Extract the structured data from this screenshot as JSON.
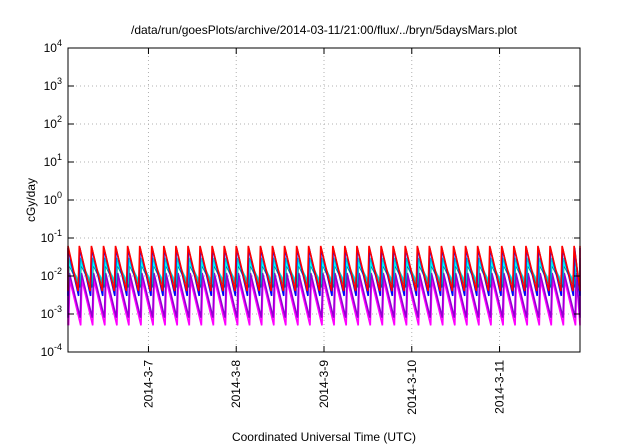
{
  "chart_data": {
    "type": "line",
    "title": "/data/run/goesPlots/archive/2014-03-11/21:00/flux/../bryn/5daysMars.plot",
    "xlabel": "Coordinated Universal Time (UTC)",
    "ylabel": "cGy/day",
    "yscale": "log",
    "ylim": [
      0.0001,
      10000
    ],
    "xlim": [
      "2014-03-06 02:00",
      "2014-03-11 22:00"
    ],
    "grid": true,
    "y_ticks": [
      {
        "base": "10",
        "exp": "-4",
        "value": 0.0001
      },
      {
        "base": "10",
        "exp": "-3",
        "value": 0.001
      },
      {
        "base": "10",
        "exp": "-2",
        "value": 0.01
      },
      {
        "base": "10",
        "exp": "-1",
        "value": 0.1
      },
      {
        "base": "10",
        "exp": "0",
        "value": 1
      },
      {
        "base": "10",
        "exp": "1",
        "value": 10
      },
      {
        "base": "10",
        "exp": "2",
        "value": 100
      },
      {
        "base": "10",
        "exp": "3",
        "value": 1000
      },
      {
        "base": "10",
        "exp": "4",
        "value": 10000
      }
    ],
    "x_ticks": [
      {
        "label": "2014-3-7",
        "value": "2014-03-07 00:00"
      },
      {
        "label": "2014-3-8",
        "value": "2014-03-08 00:00"
      },
      {
        "label": "2014-3-9",
        "value": "2014-03-09 00:00"
      },
      {
        "label": "2014-3-10",
        "value": "2014-03-10 00:00"
      },
      {
        "label": "2014-3-11",
        "value": "2014-03-11 00:00"
      }
    ],
    "cycle_hours": 3.3,
    "series": [
      {
        "color": "#ff0000",
        "max": 0.062,
        "min": 0.004
      },
      {
        "color": "#0000ff",
        "max": 0.055,
        "min": 0.003
      },
      {
        "color": "#00ced1",
        "max": 0.03,
        "min": 0.006
      },
      {
        "color": "#00ffff",
        "max": 0.022,
        "min": 0.007
      },
      {
        "color": "#008b8b",
        "max": 0.02,
        "min": 0.005
      },
      {
        "color": "#9400d3",
        "max": 0.012,
        "min": 0.0008
      },
      {
        "color": "#ff00ff",
        "max": 0.008,
        "min": 0.0005
      }
    ]
  }
}
